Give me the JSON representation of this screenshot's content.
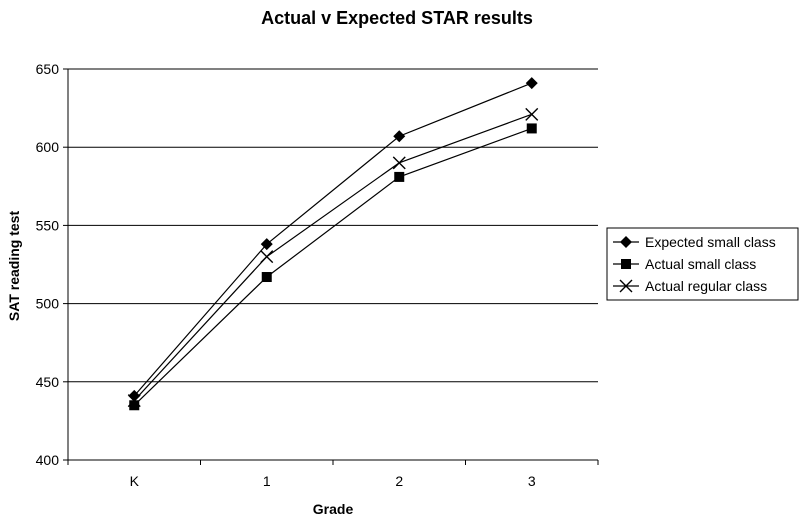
{
  "chart_data": {
    "type": "line",
    "title": "Actual v Expected STAR results",
    "xlabel": "Grade",
    "ylabel": "SAT reading test",
    "categories": [
      "K",
      "1",
      "2",
      "3"
    ],
    "ylim": [
      400,
      650
    ],
    "yticks": [
      400,
      450,
      500,
      550,
      600,
      650
    ],
    "grid": true,
    "legend_position": "right",
    "series": [
      {
        "name": "Expected small class",
        "marker": "diamond",
        "values": [
          441,
          538,
          607,
          641
        ]
      },
      {
        "name": "Actual small class",
        "marker": "square",
        "values": [
          435,
          517,
          581,
          612
        ]
      },
      {
        "name": "Actual regular class",
        "marker": "x",
        "values": [
          438,
          530,
          590,
          621
        ]
      }
    ],
    "colors": {
      "line": "#000000",
      "grid": "#000000",
      "background": "#ffffff"
    }
  }
}
